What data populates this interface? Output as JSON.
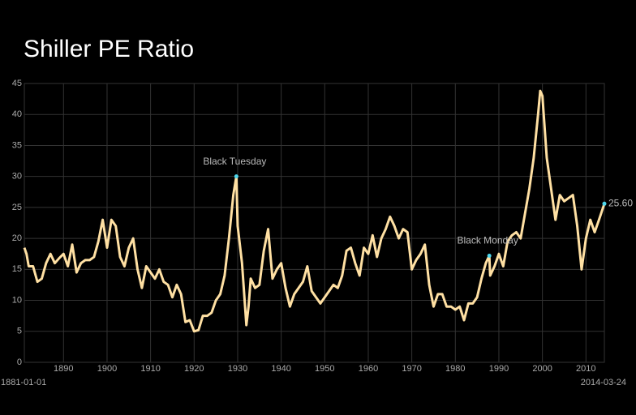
{
  "chart_data": {
    "type": "line",
    "title": "Shiller PE Ratio",
    "x": [
      1881,
      1881.5,
      1882,
      1883,
      1884,
      1885,
      1886,
      1887,
      1888,
      1889,
      1890,
      1891,
      1892,
      1893,
      1894,
      1895,
      1896,
      1897,
      1898,
      1899,
      1900,
      1901,
      1902,
      1903,
      1904,
      1905,
      1906,
      1907,
      1908,
      1909,
      1910,
      1911,
      1912,
      1913,
      1914,
      1915,
      1916,
      1917,
      1918,
      1919,
      1920,
      1921,
      1922,
      1923,
      1924,
      1925,
      1926,
      1927,
      1928,
      1929,
      1929.7,
      1930,
      1931,
      1932,
      1932.5,
      1933,
      1934,
      1935,
      1936,
      1937,
      1938,
      1939,
      1940,
      1941,
      1942,
      1943,
      1944,
      1945,
      1946,
      1947,
      1948,
      1949,
      1950,
      1951,
      1952,
      1953,
      1954,
      1955,
      1956,
      1957,
      1958,
      1959,
      1960,
      1961,
      1962,
      1963,
      1964,
      1965,
      1966,
      1967,
      1968,
      1969,
      1970,
      1971,
      1972,
      1973,
      1974,
      1975,
      1976,
      1977,
      1978,
      1979,
      1980,
      1981,
      1982,
      1983,
      1984,
      1985,
      1986,
      1987,
      1987.8,
      1988,
      1989,
      1990,
      1991,
      1992,
      1993,
      1994,
      1995,
      1996,
      1997,
      1998,
      1999,
      1999.5,
      2000,
      2001,
      2002,
      2003,
      2004,
      2005,
      2006,
      2007,
      2008,
      2009,
      2010,
      2011,
      2012,
      2013,
      2014.23
    ],
    "series": [
      {
        "name": "Shiller PE Ratio",
        "color": "#ffe0a3",
        "values": [
          18.5,
          17.5,
          15.5,
          15.5,
          13,
          13.5,
          16,
          17.5,
          16,
          16.8,
          17.5,
          15.5,
          19,
          14.5,
          16,
          16.5,
          16.5,
          17,
          19.5,
          23,
          18.5,
          23,
          22,
          17,
          15.5,
          18.5,
          20,
          15,
          12,
          15.5,
          14.5,
          13.5,
          15,
          13,
          12.5,
          10.5,
          12.5,
          11,
          6.5,
          6.8,
          5,
          5.2,
          7.5,
          7.5,
          8,
          10,
          11,
          14,
          20,
          27,
          30,
          22,
          16,
          6,
          9,
          13.5,
          12,
          12.5,
          18,
          21.5,
          13.5,
          15,
          16,
          12,
          9,
          11,
          12,
          13,
          15.5,
          11.5,
          10.5,
          9.5,
          10.5,
          11.5,
          12.5,
          12,
          14,
          18,
          18.5,
          16,
          14,
          18.5,
          17.5,
          20.5,
          17,
          20,
          21.5,
          23.5,
          22,
          20,
          21.5,
          21,
          15,
          16.5,
          17.5,
          19,
          12.5,
          9,
          11,
          11,
          9,
          9,
          8.5,
          9,
          6.8,
          9.5,
          9.5,
          10.5,
          13.5,
          16,
          17.2,
          14,
          15.5,
          17.5,
          15.5,
          19.5,
          20.5,
          21,
          20,
          24,
          28,
          33,
          40,
          43.8,
          43,
          33,
          28,
          23,
          27,
          26,
          26.5,
          27,
          22,
          15,
          20,
          23,
          21,
          23,
          25.6
        ]
      }
    ],
    "xlim": [
      1881,
      2014.23
    ],
    "xlim_labels": [
      "1881-01-01",
      "2014-03-24"
    ],
    "xticks": [
      1890,
      1900,
      1910,
      1920,
      1930,
      1940,
      1950,
      1960,
      1970,
      1980,
      1990,
      2000,
      2010
    ],
    "ylim": [
      0,
      45
    ],
    "yticks": [
      0,
      5,
      10,
      15,
      20,
      25,
      30,
      35,
      40,
      45
    ],
    "grid": true,
    "annotations": [
      {
        "text": "Black Tuesday",
        "x": 1929.7,
        "y": 30,
        "color": "#4fd8ee"
      },
      {
        "text": "Black Monday",
        "x": 1987.8,
        "y": 17.2,
        "color": "#4fd8ee"
      },
      {
        "text": "25.60",
        "x": 2014.23,
        "y": 25.6,
        "color": "#4fd8ee"
      }
    ]
  }
}
